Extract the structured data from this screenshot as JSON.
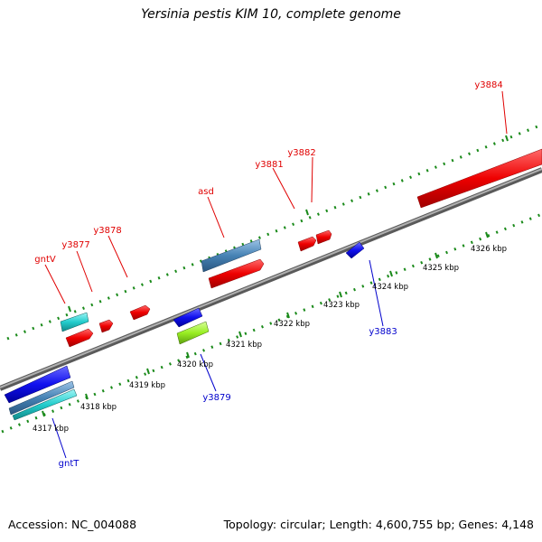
{
  "title": "Yersinia pestis KIM 10, complete genome",
  "footer": {
    "accession": "Accession: NC_004088",
    "topology": "Topology: circular; Length: 4,600,755 bp; Genes: 4,148"
  },
  "colors": {
    "forward_gene": "#ee0000",
    "reverse_gene": "#1010ee",
    "cyan_gene": "#22cccc",
    "steel_gene": "#4682b4",
    "lime_gene": "#99ee22",
    "backbone": "#8a8a8a",
    "tick": "#1a8a1a",
    "forward_label": "#e00000",
    "reverse_label": "#0000cc"
  },
  "scale_labels": [
    "4317 kbp",
    "4318 kbp",
    "4319 kbp",
    "4320 kbp",
    "4321 kbp",
    "4322 kbp",
    "4323 kbp",
    "4324 kbp",
    "4325 kbp",
    "4326 kbp"
  ],
  "forward_gene_labels": [
    "gntV",
    "y3877",
    "y3878",
    "asd",
    "y3881",
    "y3882",
    "y3884"
  ],
  "reverse_gene_labels": [
    "gntT",
    "y3879",
    "y3883"
  ]
}
